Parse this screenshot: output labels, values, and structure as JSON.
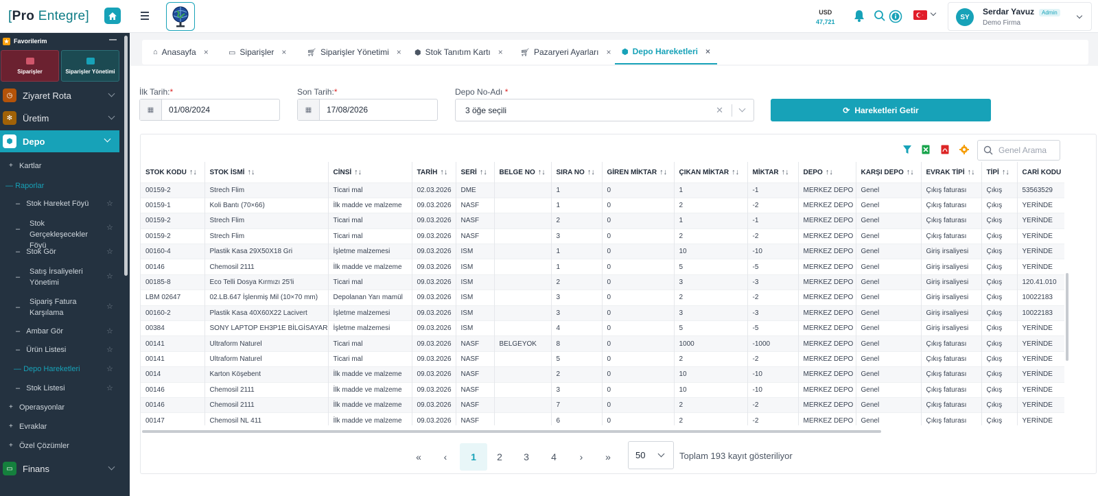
{
  "app": {
    "logo_prefix": "Pro",
    "logo_suffix": "Entegre"
  },
  "sidebar": {
    "favorites_title": "Favorilerim",
    "fav_cards": [
      "Siparişler",
      "Siparişler Yönetimi"
    ],
    "menu": [
      {
        "label": "Ziyaret Rota",
        "icon": "clock-icon",
        "color": "#b45309"
      },
      {
        "label": "Üretim",
        "icon": "gears-icon",
        "color": "#a16207"
      },
      {
        "label": "Depo",
        "icon": "box-icon",
        "color": "#ffffff"
      },
      {
        "label": "Finans",
        "icon": "money-icon",
        "color": "#16a34a"
      }
    ],
    "depo_subs": {
      "kartlar": "Kartlar",
      "raporlar": "Raporlar",
      "items": [
        "Stok Hareket Föyü",
        "Stok Gerçekleşecekler Föyü",
        "Stok Gör",
        "Satış İrsaliyeleri Yönetimi",
        "Sipariş Fatura Karşılama",
        "Ambar Gör",
        "Ürün Listesi",
        "Depo Hareketleri",
        "Stok Listesi"
      ],
      "after": [
        "Operasyonlar",
        "Evraklar",
        "Özel Çözümler"
      ]
    }
  },
  "topbar": {
    "currency_code": "USD",
    "currency_value": "47,721",
    "user_name": "Serdar Yavuz",
    "user_role": "Admin",
    "user_firm": "Demo Firma",
    "avatar_initials": "SY"
  },
  "tabs": [
    {
      "label": "Anasayfa",
      "icon": "home-icon"
    },
    {
      "label": "Siparişler",
      "icon": "money-icon"
    },
    {
      "label": "Siparişler Yönetimi",
      "icon": "cart-icon"
    },
    {
      "label": "Stok Tanıtım Kartı",
      "icon": "box-icon"
    },
    {
      "label": "Pazaryeri Ayarları",
      "icon": "cart-icon"
    },
    {
      "label": "Depo Hareketleri",
      "icon": "box-icon"
    }
  ],
  "filters": {
    "start_label": "İlk Tarih:",
    "start_value": "01/08/2024",
    "end_label": "Son Tarih:",
    "end_value": "17/08/2026",
    "depot_label": "Depo No-Adı",
    "depot_value": "3 öğe seçili",
    "fetch_button": "Hareketleri Getir",
    "search_placeholder": "Genel Arama"
  },
  "table": {
    "columns": [
      "STOK KODU",
      "STOK İSMİ",
      "CİNSİ",
      "TARİH",
      "SERİ",
      "BELGE NO",
      "SIRA NO",
      "GİREN MİKTAR",
      "ÇIKAN MİKTAR",
      "MİKTAR",
      "DEPO",
      "KARŞI DEPO",
      "EVRAK TİPİ",
      "TİPİ",
      "CARİ KODU"
    ],
    "rows": [
      [
        "00159-2",
        "Strech Flim",
        "Ticari mal",
        "02.03.2026",
        "DME",
        "",
        "1",
        "0",
        "1",
        "-1",
        "MERKEZ DEPO",
        "Genel",
        "Çıkış faturası",
        "Çıkış",
        "53563529"
      ],
      [
        "00159-1",
        "Koli Bantı (70×66)",
        "İlk madde ve malzeme",
        "09.03.2026",
        "NASF",
        "",
        "1",
        "0",
        "2",
        "-2",
        "MERKEZ DEPO",
        "Genel",
        "Çıkış faturası",
        "Çıkış",
        "YERİNDE"
      ],
      [
        "00159-2",
        "Strech Flim",
        "Ticari mal",
        "09.03.2026",
        "NASF",
        "",
        "2",
        "0",
        "1",
        "-1",
        "MERKEZ DEPO",
        "Genel",
        "Çıkış faturası",
        "Çıkış",
        "YERİNDE"
      ],
      [
        "00159-2",
        "Strech Flim",
        "Ticari mal",
        "09.03.2026",
        "NASF",
        "",
        "3",
        "0",
        "2",
        "-2",
        "MERKEZ DEPO",
        "Genel",
        "Çıkış faturası",
        "Çıkış",
        "YERİNDE"
      ],
      [
        "00160-4",
        "Plastik Kasa 29X50X18 Gri",
        "İşletme malzemesi",
        "09.03.2026",
        "ISM",
        "",
        "1",
        "0",
        "10",
        "-10",
        "MERKEZ DEPO",
        "Genel",
        "Giriş irsaliyesi",
        "Çıkış",
        "YERİNDE"
      ],
      [
        "00146",
        "Chemosil 2111",
        "İlk madde ve malzeme",
        "09.03.2026",
        "ISM",
        "",
        "1",
        "0",
        "5",
        "-5",
        "MERKEZ DEPO",
        "Genel",
        "Giriş irsaliyesi",
        "Çıkış",
        "YERİNDE"
      ],
      [
        "00185-8",
        "Eco Telli Dosya Kırmızı 25'li",
        "Ticari mal",
        "09.03.2026",
        "ISM",
        "",
        "2",
        "0",
        "3",
        "-3",
        "MERKEZ DEPO",
        "Genel",
        "Giriş irsaliyesi",
        "Çıkış",
        "120.41.010"
      ],
      [
        "LBM 02647",
        "02.LB.647 İşlenmiş Mil (10×70 mm)",
        "Depolanan Yarı mamül",
        "09.03.2026",
        "ISM",
        "",
        "3",
        "0",
        "2",
        "-2",
        "MERKEZ DEPO",
        "Genel",
        "Giriş irsaliyesi",
        "Çıkış",
        "10022183"
      ],
      [
        "00160-2",
        "Plastik Kasa 40X60X22 Lacivert",
        "İşletme malzemesi",
        "09.03.2026",
        "ISM",
        "",
        "3",
        "0",
        "3",
        "-3",
        "MERKEZ DEPO",
        "Genel",
        "Giriş irsaliyesi",
        "Çıkış",
        "10022183"
      ],
      [
        "00384",
        "SONY LAPTOP EH3P1E BİLGİSAYAR",
        "İşletme malzemesi",
        "09.03.2026",
        "ISM",
        "",
        "4",
        "0",
        "5",
        "-5",
        "MERKEZ DEPO",
        "Genel",
        "Giriş irsaliyesi",
        "Çıkış",
        "YERİNDE"
      ],
      [
        "00141",
        "Ultraform Naturel",
        "Ticari mal",
        "09.03.2026",
        "NASF",
        "BELGEYOK",
        "8",
        "0",
        "1000",
        "-1000",
        "MERKEZ DEPO",
        "Genel",
        "Çıkış faturası",
        "Çıkış",
        "YERİNDE"
      ],
      [
        "00141",
        "Ultraform Naturel",
        "Ticari mal",
        "09.03.2026",
        "NASF",
        "",
        "5",
        "0",
        "2",
        "-2",
        "MERKEZ DEPO",
        "Genel",
        "Çıkış faturası",
        "Çıkış",
        "YERİNDE"
      ],
      [
        "0014",
        "Karton Köşebent",
        "İlk madde ve malzeme",
        "09.03.2026",
        "NASF",
        "",
        "2",
        "0",
        "10",
        "-10",
        "MERKEZ DEPO",
        "Genel",
        "Çıkış faturası",
        "Çıkış",
        "YERİNDE"
      ],
      [
        "00146",
        "Chemosil 2111",
        "İlk madde ve malzeme",
        "09.03.2026",
        "NASF",
        "",
        "3",
        "0",
        "10",
        "-10",
        "MERKEZ DEPO",
        "Genel",
        "Çıkış faturası",
        "Çıkış",
        "YERİNDE"
      ],
      [
        "00146",
        "Chemosil 2111",
        "İlk madde ve malzeme",
        "09.03.2026",
        "NASF",
        "",
        "7",
        "0",
        "2",
        "-2",
        "MERKEZ DEPO",
        "Genel",
        "Çıkış faturası",
        "Çıkış",
        "YERİNDE"
      ],
      [
        "00147",
        "Chemosil NL 411",
        "İlk madde ve malzeme",
        "09.03.2026",
        "NASF",
        "",
        "6",
        "0",
        "2",
        "-2",
        "MERKEZ DEPO",
        "Genel",
        "Çıkış faturası",
        "Çıkış",
        "YERİNDE"
      ]
    ]
  },
  "pagination": {
    "pages": [
      "1",
      "2",
      "3",
      "4"
    ],
    "current": "1",
    "page_size": "50",
    "total_text": "Toplam 193 kayıt gösteriliyor"
  }
}
